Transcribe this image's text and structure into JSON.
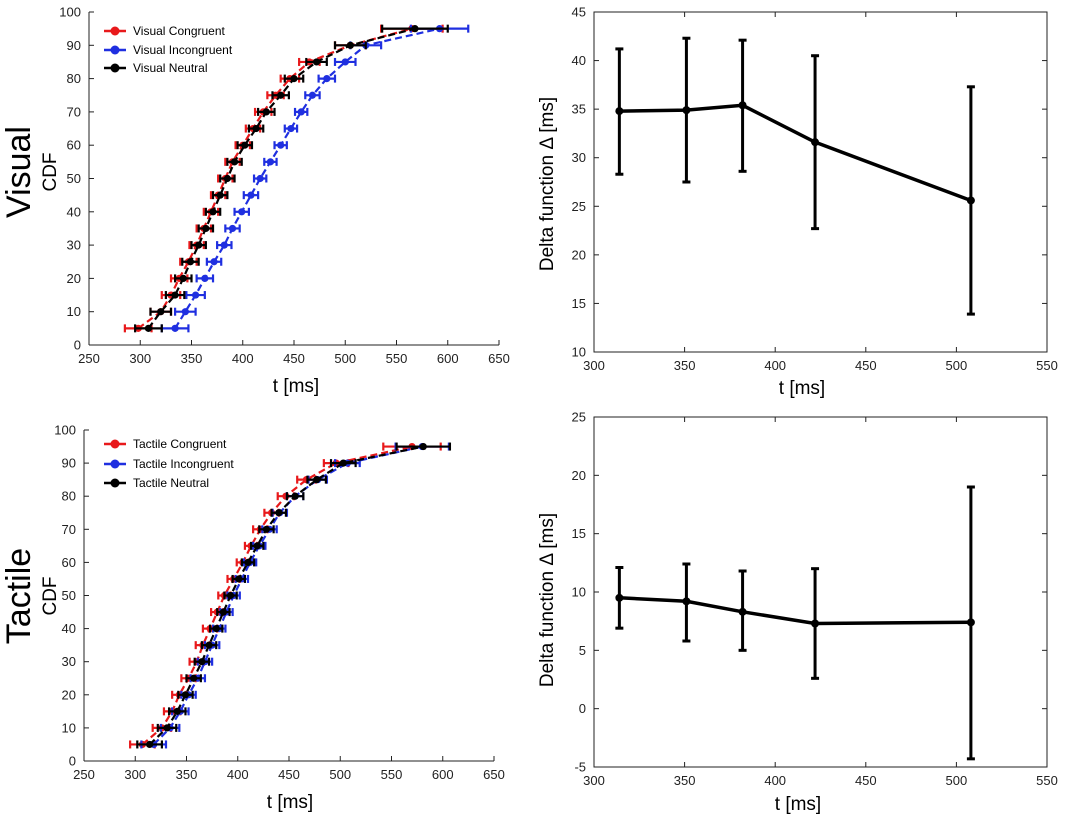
{
  "chart_data": [
    {
      "id": "visual-cdf",
      "type": "line",
      "row_title": "Visual",
      "ylabel": "CDF",
      "xlabel": "t [ms]",
      "xlim": [
        250,
        650
      ],
      "ylim": [
        0,
        100
      ],
      "xticks": [
        "250",
        "300",
        "350",
        "400",
        "450",
        "500",
        "550",
        "600",
        "650"
      ],
      "yticks": [
        "0",
        "10",
        "20",
        "30",
        "40",
        "50",
        "60",
        "70",
        "80",
        "90",
        "100"
      ],
      "y": [
        5,
        10,
        15,
        20,
        25,
        30,
        35,
        40,
        45,
        50,
        55,
        60,
        65,
        70,
        75,
        80,
        85,
        90,
        95
      ],
      "series": [
        {
          "name": "Visual Congruent",
          "color": "#e8191b",
          "x": [
            298,
            320,
            330,
            338,
            347,
            355,
            362,
            369,
            376,
            383,
            390,
            400,
            410,
            420,
            432,
            446,
            465,
            505,
            565
          ],
          "err": [
            13,
            10,
            9,
            8,
            8,
            7,
            7,
            7,
            7,
            7,
            7,
            7,
            7,
            8,
            8,
            9,
            10,
            15,
            30
          ]
        },
        {
          "name": "Visual Incongruent",
          "color": "#1f2fe0",
          "x": [
            334,
            344,
            354,
            363,
            372,
            382,
            390,
            399,
            408,
            417,
            427,
            437,
            447,
            457,
            468,
            482,
            500,
            520,
            592
          ],
          "err": [
            13,
            10,
            9,
            8,
            7,
            7,
            7,
            7,
            7,
            6,
            6,
            6,
            6,
            6,
            7,
            8,
            10,
            15,
            28
          ]
        },
        {
          "name": "Visual Neutral",
          "color": "#000000",
          "x": [
            308,
            320,
            334,
            342,
            349,
            357,
            364,
            371,
            378,
            385,
            392,
            402,
            413,
            423,
            437,
            450,
            472,
            505,
            568
          ],
          "err": [
            13,
            10,
            9,
            8,
            8,
            7,
            7,
            7,
            7,
            7,
            7,
            7,
            7,
            8,
            8,
            9,
            10,
            15,
            32
          ]
        }
      ]
    },
    {
      "id": "visual-delta",
      "type": "line",
      "xlabel": "t [ms]",
      "ylabel": "Delta function Δ [ms]",
      "xlim": [
        300,
        550
      ],
      "ylim": [
        10,
        45
      ],
      "xticks": [
        "300",
        "350",
        "400",
        "450",
        "500",
        "550"
      ],
      "yticks": [
        "10",
        "15",
        "20",
        "25",
        "30",
        "35",
        "40",
        "45"
      ],
      "points": [
        {
          "x": 314,
          "y": 34.8,
          "lo": 28.3,
          "hi": 41.2
        },
        {
          "x": 351,
          "y": 34.9,
          "lo": 27.5,
          "hi": 42.3
        },
        {
          "x": 382,
          "y": 35.4,
          "lo": 28.6,
          "hi": 42.1
        },
        {
          "x": 422,
          "y": 31.6,
          "lo": 22.7,
          "hi": 40.5
        },
        {
          "x": 508,
          "y": 25.6,
          "lo": 13.9,
          "hi": 37.3
        }
      ]
    },
    {
      "id": "tactile-cdf",
      "type": "line",
      "row_title": "Tactile",
      "ylabel": "CDF",
      "xlabel": "t [ms]",
      "xlim": [
        250,
        650
      ],
      "ylim": [
        0,
        100
      ],
      "xticks": [
        "250",
        "300",
        "350",
        "400",
        "450",
        "500",
        "550",
        "600",
        "650"
      ],
      "yticks": [
        "0",
        "10",
        "20",
        "30",
        "40",
        "50",
        "60",
        "70",
        "80",
        "90",
        "100"
      ],
      "y": [
        5,
        10,
        15,
        20,
        25,
        30,
        35,
        40,
        45,
        50,
        55,
        60,
        65,
        70,
        75,
        80,
        85,
        90,
        95
      ],
      "series": [
        {
          "name": "Tactile Congruent",
          "color": "#e8191b",
          "x": [
            307,
            326,
            336,
            343,
            352,
            360,
            366,
            373,
            380,
            387,
            396,
            405,
            413,
            422,
            433,
            447,
            467,
            496,
            570
          ],
          "err": [
            12,
            9,
            8,
            7,
            7,
            7,
            7,
            7,
            6,
            6,
            6,
            6,
            6,
            7,
            7,
            8,
            9,
            12,
            28
          ]
        },
        {
          "name": "Tactile Incongruent",
          "color": "#1f2fe0",
          "x": [
            318,
            334,
            344,
            352,
            361,
            368,
            375,
            382,
            389,
            396,
            404,
            412,
            421,
            431,
            441,
            456,
            478,
            507,
            580
          ],
          "err": [
            12,
            9,
            8,
            7,
            7,
            7,
            7,
            6,
            6,
            6,
            6,
            6,
            6,
            7,
            7,
            8,
            9,
            12,
            26
          ]
        },
        {
          "name": "Tactile Neutral",
          "color": "#000000",
          "x": [
            314,
            331,
            341,
            349,
            357,
            365,
            372,
            379,
            386,
            393,
            401,
            410,
            419,
            428,
            440,
            456,
            477,
            503,
            581
          ],
          "err": [
            12,
            9,
            8,
            7,
            7,
            7,
            7,
            6,
            6,
            6,
            6,
            6,
            6,
            7,
            7,
            8,
            9,
            12,
            26
          ]
        }
      ]
    },
    {
      "id": "tactile-delta",
      "type": "line",
      "xlabel": "t [ms]",
      "ylabel": "Delta function Δ [ms]",
      "xlim": [
        300,
        550
      ],
      "ylim": [
        -5,
        25
      ],
      "xticks": [
        "300",
        "350",
        "400",
        "450",
        "500",
        "550"
      ],
      "yticks": [
        "-5",
        "0",
        "5",
        "10",
        "15",
        "20",
        "25"
      ],
      "points": [
        {
          "x": 314,
          "y": 9.5,
          "lo": 6.9,
          "hi": 12.1
        },
        {
          "x": 351,
          "y": 9.2,
          "lo": 5.8,
          "hi": 12.4
        },
        {
          "x": 382,
          "y": 8.3,
          "lo": 5.0,
          "hi": 11.8
        },
        {
          "x": 422,
          "y": 7.3,
          "lo": 2.6,
          "hi": 12.0
        },
        {
          "x": 508,
          "y": 7.4,
          "lo": -4.3,
          "hi": 19.0
        }
      ]
    }
  ]
}
